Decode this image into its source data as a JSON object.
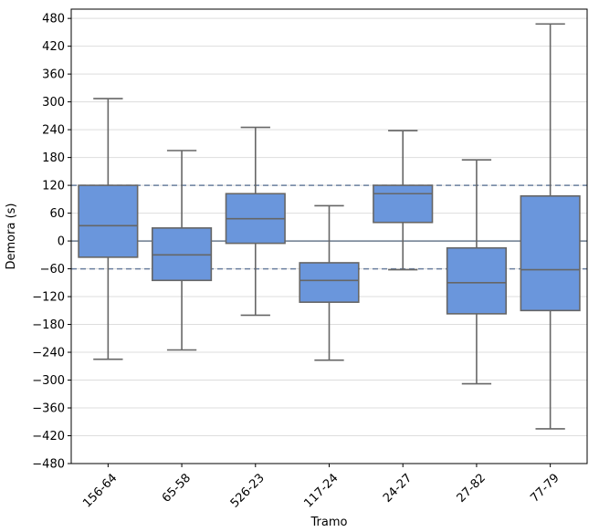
{
  "chart_data": {
    "type": "box",
    "title": "",
    "xlabel": "Tramo",
    "ylabel": "Demora (s)",
    "ylim": [
      -480,
      500
    ],
    "yticks": [
      -480,
      -420,
      -360,
      -300,
      -240,
      -180,
      -120,
      -60,
      0,
      60,
      120,
      180,
      240,
      300,
      360,
      420,
      480
    ],
    "categories": [
      "156-64",
      "65-58",
      "526-23",
      "117-24",
      "24-27",
      "27-82",
      "77-79"
    ],
    "boxes": [
      {
        "category": "156-64",
        "whisker_low": -255,
        "q1": -35,
        "median": 33,
        "q3": 120,
        "whisker_high": 307
      },
      {
        "category": "65-58",
        "whisker_low": -235,
        "q1": -85,
        "median": -30,
        "q3": 28,
        "whisker_high": 195
      },
      {
        "category": "526-23",
        "whisker_low": -160,
        "q1": -5,
        "median": 48,
        "q3": 102,
        "whisker_high": 245
      },
      {
        "category": "117-24",
        "whisker_low": -257,
        "q1": -132,
        "median": -85,
        "q3": -47,
        "whisker_high": 76
      },
      {
        "category": "24-27",
        "whisker_low": -62,
        "q1": 40,
        "median": 102,
        "q3": 120,
        "whisker_high": 238
      },
      {
        "category": "27-82",
        "whisker_low": -308,
        "q1": -157,
        "median": -90,
        "q3": -15,
        "whisker_high": 175
      },
      {
        "category": "77-79",
        "whisker_low": -405,
        "q1": -150,
        "median": -62,
        "q3": 97,
        "whisker_high": 468
      }
    ],
    "reference_lines": [
      {
        "y": 0,
        "style": "solid"
      },
      {
        "y": 120,
        "style": "dashed"
      },
      {
        "y": -60,
        "style": "dashed"
      }
    ],
    "grid": "horizontal",
    "colors": {
      "box_fill": "#6a96dc",
      "box_edge": "#666666",
      "ref_solid": "#6a7a8e",
      "ref_dashed": "#6a7f9e",
      "grid": "#dddddd"
    }
  }
}
